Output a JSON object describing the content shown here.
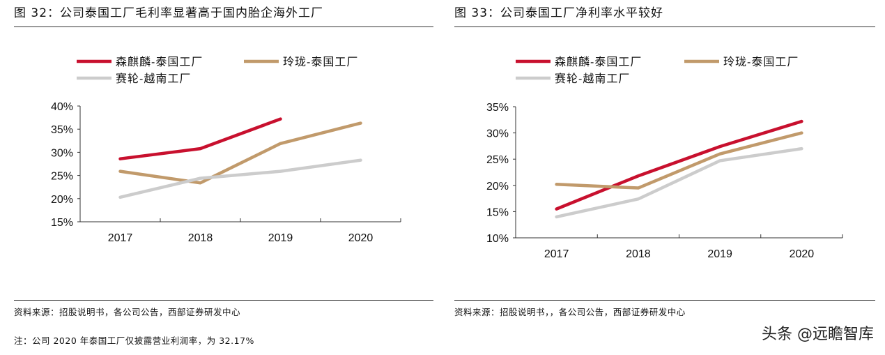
{
  "charts": [
    {
      "title": "图 32：公司泰国工厂毛利率显著高于国内胎企海外工厂",
      "source": "资料来源：招股说明书，各公司公告，西部证券研发中心",
      "note": "注：公司 2020 年泰国工厂仅披露营业利润率，为 32.17%"
    },
    {
      "title": "图 33：公司泰国工厂净利率水平较好",
      "source": "资料来源：招股说明书，，各公司公告，西部证券研发中心"
    }
  ],
  "chart_data": [
    {
      "type": "line",
      "categories": [
        "2017",
        "2018",
        "2019",
        "2020"
      ],
      "ylim": [
        0.15,
        0.4
      ],
      "yticks": [
        "40%",
        "35%",
        "30%",
        "25%",
        "20%",
        "15%"
      ],
      "legend": "top",
      "series": [
        {
          "name": "森麒麟-泰国工厂",
          "color": "#c8102e",
          "values": [
            0.286,
            0.308,
            0.372,
            null
          ]
        },
        {
          "name": "玲珑-泰国工厂",
          "color": "#c19a6b",
          "values": [
            0.259,
            0.234,
            0.319,
            0.363
          ]
        },
        {
          "name": "赛轮-越南工厂",
          "color": "#cccccc",
          "values": [
            0.203,
            0.244,
            0.259,
            0.283
          ]
        }
      ]
    },
    {
      "type": "line",
      "categories": [
        "2017",
        "2018",
        "2019",
        "2020"
      ],
      "ylim": [
        0.1,
        0.35
      ],
      "yticks": [
        "35%",
        "30%",
        "25%",
        "20%",
        "15%",
        "10%"
      ],
      "legend": "top",
      "series": [
        {
          "name": "森麒麟-泰国工厂",
          "color": "#c8102e",
          "values": [
            0.155,
            0.218,
            0.274,
            0.322
          ]
        },
        {
          "name": "玲珑-泰国工厂",
          "color": "#c19a6b",
          "values": [
            0.202,
            0.195,
            0.26,
            0.3
          ]
        },
        {
          "name": "赛轮-越南工厂",
          "color": "#cccccc",
          "values": [
            0.14,
            0.174,
            0.247,
            0.27
          ]
        }
      ]
    }
  ],
  "watermark": "头条 @远瞻智库"
}
